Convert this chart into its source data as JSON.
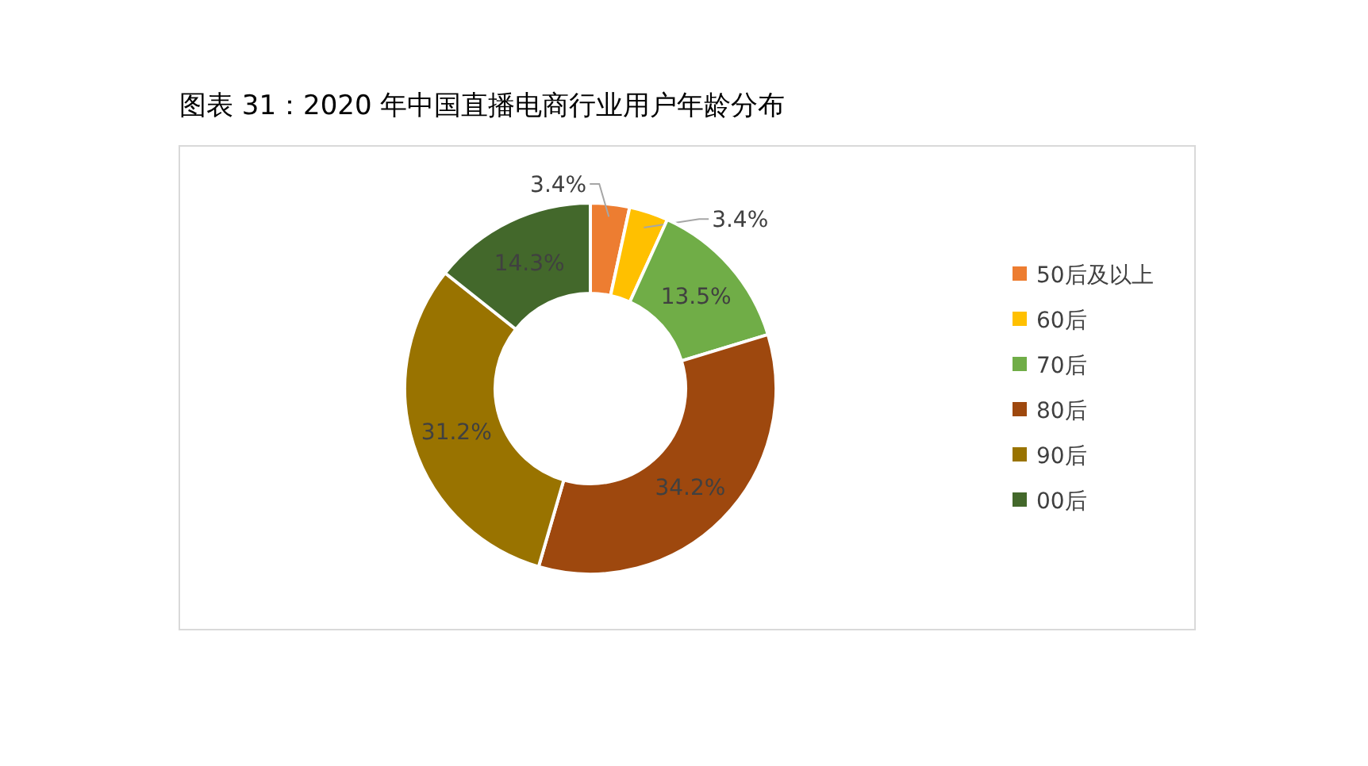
{
  "chart_data": {
    "type": "donut",
    "title": "图表 31：2020 年中国直播电商行业用户年龄分布",
    "categories": [
      "50后及以上",
      "60后",
      "70后",
      "80后",
      "90后",
      "00后"
    ],
    "values": [
      3.4,
      3.4,
      13.5,
      34.2,
      31.2,
      14.3
    ],
    "colors": [
      "#ed7d31",
      "#ffc000",
      "#70ad47",
      "#9e480e",
      "#997300",
      "#43682b"
    ],
    "value_labels": [
      "3.4%",
      "3.4%",
      "13.5%",
      "34.2%",
      "31.2%",
      "14.3%"
    ],
    "legend": "right"
  }
}
